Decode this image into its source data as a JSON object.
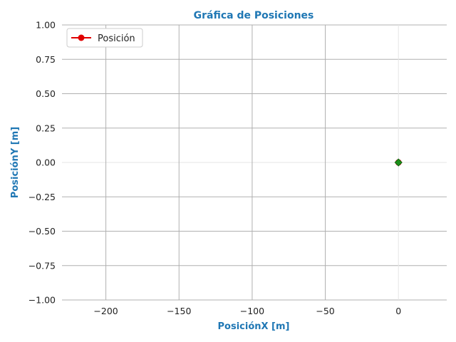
{
  "chart_data": {
    "type": "line",
    "title": "Gráfica de Posiciones",
    "xlabel": "PosiciónX [m]",
    "ylabel": "PosiciónY [m]",
    "xlim": [
      -230,
      33
    ],
    "ylim": [
      -1.0,
      1.0
    ],
    "xticks": [
      -200,
      -150,
      -100,
      -50,
      0
    ],
    "xtick_labels": [
      "−200",
      "−150",
      "−100",
      "−50",
      "0"
    ],
    "yticks": [
      1.0,
      0.75,
      0.5,
      0.25,
      0.0,
      -0.25,
      -0.5,
      -0.75,
      -1.0
    ],
    "ytick_labels": [
      "1.00",
      "0.75",
      "0.50",
      "0.25",
      "0.00",
      "−0.25",
      "−0.50",
      "−0.75",
      "−1.00"
    ],
    "grid": true,
    "legend_position": "top-left",
    "series": [
      {
        "name": "Posición",
        "color": "#e00000",
        "marker": "circle",
        "x": [
          0
        ],
        "y": [
          0
        ]
      }
    ],
    "markers": [
      {
        "shape": "diamond",
        "color": "#1a8f1a",
        "x": 0,
        "y": 0
      }
    ],
    "colors": {
      "title": "#1f77b4",
      "axis_label": "#1f77b4",
      "grid": "#b0b0b0",
      "zero_grid": "#e6e6e6"
    }
  }
}
